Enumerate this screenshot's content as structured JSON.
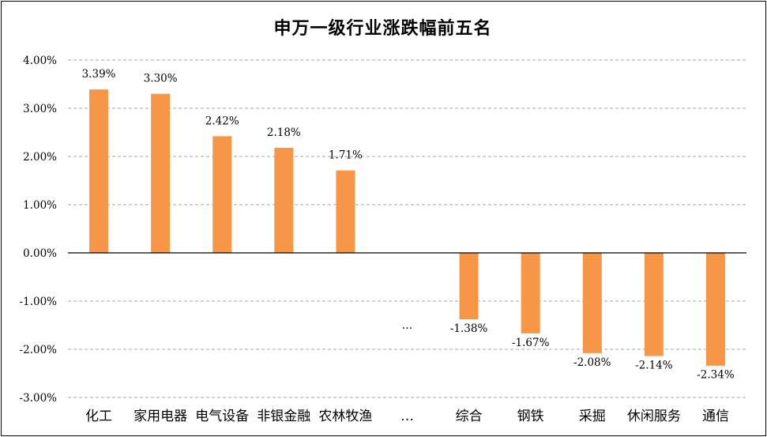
{
  "chart_data": {
    "type": "bar",
    "title": "申万一级行业涨跌幅前五名",
    "xlabel": "",
    "ylabel": "",
    "ylim": [
      -3.0,
      4.0
    ],
    "yticks": [
      "4.00%",
      "3.00%",
      "2.00%",
      "1.00%",
      "0.00%",
      "-1.00%",
      "-2.00%",
      "-3.00%"
    ],
    "grid": true,
    "legend": "none",
    "categories": [
      "化工",
      "家用电器",
      "电气设备",
      "非银金融",
      "农林牧渔",
      "…",
      "综合",
      "钢铁",
      "采掘",
      "休闲服务",
      "通信"
    ],
    "values": [
      3.39,
      3.3,
      2.42,
      2.18,
      1.71,
      null,
      -1.38,
      -1.67,
      -2.08,
      -2.14,
      -2.34
    ],
    "data_labels": [
      "3.39%",
      "3.30%",
      "2.42%",
      "2.18%",
      "1.71%",
      "…",
      "-1.38%",
      "-1.67%",
      "-2.08%",
      "-2.14%",
      "-2.34%"
    ],
    "bar_color": "#F79646"
  }
}
